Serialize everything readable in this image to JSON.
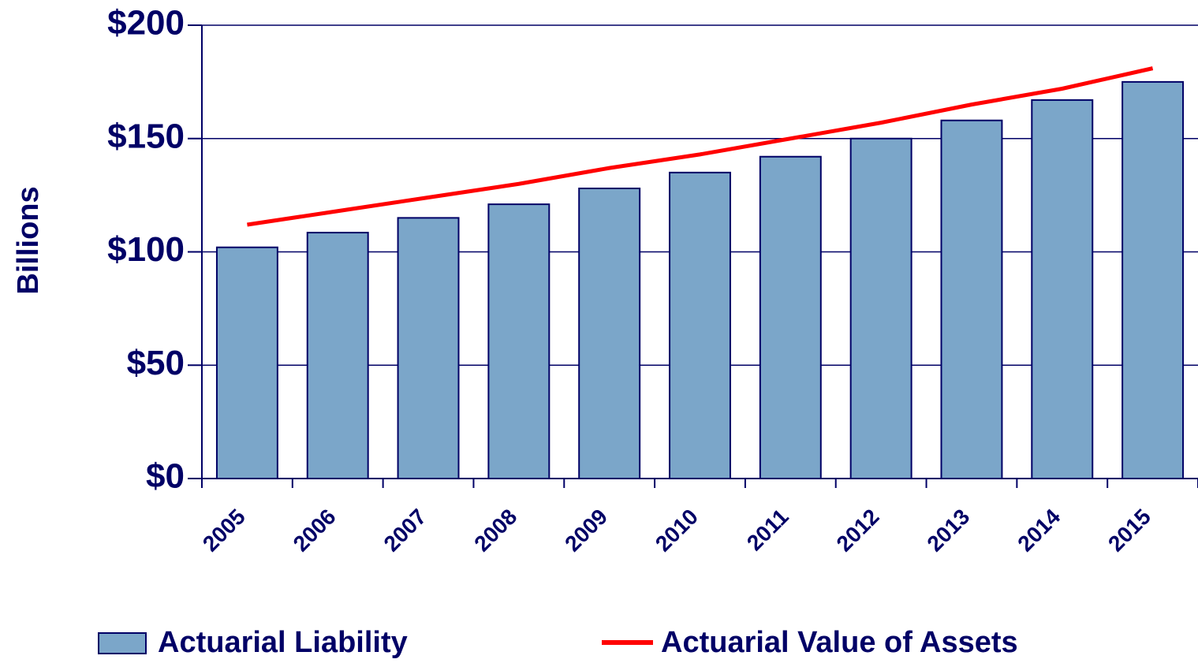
{
  "chart_data": {
    "type": "bar-line",
    "y_label": "Billions",
    "categories": [
      "2005",
      "2006",
      "2007",
      "2008",
      "2009",
      "2010",
      "2011",
      "2012",
      "2013",
      "2014",
      "2015"
    ],
    "series": [
      {
        "name": "Actuarial Liability",
        "type": "bar",
        "color": "#7ba6c9",
        "values": [
          102,
          108.5,
          115,
          121,
          128,
          135,
          142,
          150,
          158,
          167,
          175
        ]
      },
      {
        "name": "Actuarial Value of Assets",
        "type": "line",
        "color": "#ff0000",
        "values": [
          112,
          118,
          124,
          130,
          137,
          143,
          150,
          157,
          165,
          172,
          181
        ]
      }
    ],
    "ylim": [
      0,
      200
    ],
    "yticks": [
      {
        "value": 0,
        "label": "$0"
      },
      {
        "value": 50,
        "label": "$50"
      },
      {
        "value": 100,
        "label": "$100"
      },
      {
        "value": 150,
        "label": "$150"
      },
      {
        "value": 200,
        "label": "$200"
      }
    ],
    "grid": true
  }
}
